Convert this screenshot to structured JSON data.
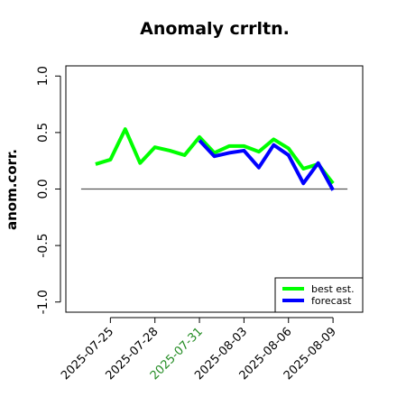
{
  "chart_data": {
    "type": "line",
    "title": "Anomaly crrltn.",
    "y_label": "anom.corr.",
    "x": [
      "2025-07-24",
      "2025-07-25",
      "2025-07-26",
      "2025-07-27",
      "2025-07-28",
      "2025-07-29",
      "2025-07-30",
      "2025-07-31",
      "2025-08-01",
      "2025-08-02",
      "2025-08-03",
      "2025-08-04",
      "2025-08-05",
      "2025-08-06",
      "2025-08-07",
      "2025-08-08",
      "2025-08-09"
    ],
    "series": [
      {
        "name": "best est.",
        "color": "#00ff00",
        "values": [
          0.22,
          0.26,
          0.53,
          0.23,
          0.37,
          0.34,
          0.3,
          0.46,
          0.32,
          0.38,
          0.38,
          0.33,
          0.44,
          0.36,
          0.18,
          0.22,
          0.05
        ]
      },
      {
        "name": "forecast",
        "color": "#0000ff",
        "values": [
          null,
          null,
          null,
          null,
          null,
          null,
          null,
          0.43,
          0.29,
          0.32,
          0.34,
          0.19,
          0.39,
          0.3,
          0.05,
          0.23,
          -0.01
        ]
      }
    ],
    "xlim": [
      "2025-07-22",
      "2025-08-11"
    ],
    "xticks": [
      "2025-07-25",
      "2025-07-28",
      "2025-07-31",
      "2025-08-03",
      "2025-08-06",
      "2025-08-09"
    ],
    "highlight_tick": "2025-07-31",
    "highlight_color": "#228b22",
    "ylim": [
      -1.09,
      1.09
    ],
    "yticks": [
      {
        "value": -1,
        "label": "-1.0"
      },
      {
        "value": -0.5,
        "label": "-0.5"
      },
      {
        "value": 0,
        "label": "0.0"
      },
      {
        "value": 0.5,
        "label": "0.5"
      },
      {
        "value": 1,
        "label": "1.0"
      }
    ],
    "reference_line": 0,
    "legend": "bottom right"
  }
}
